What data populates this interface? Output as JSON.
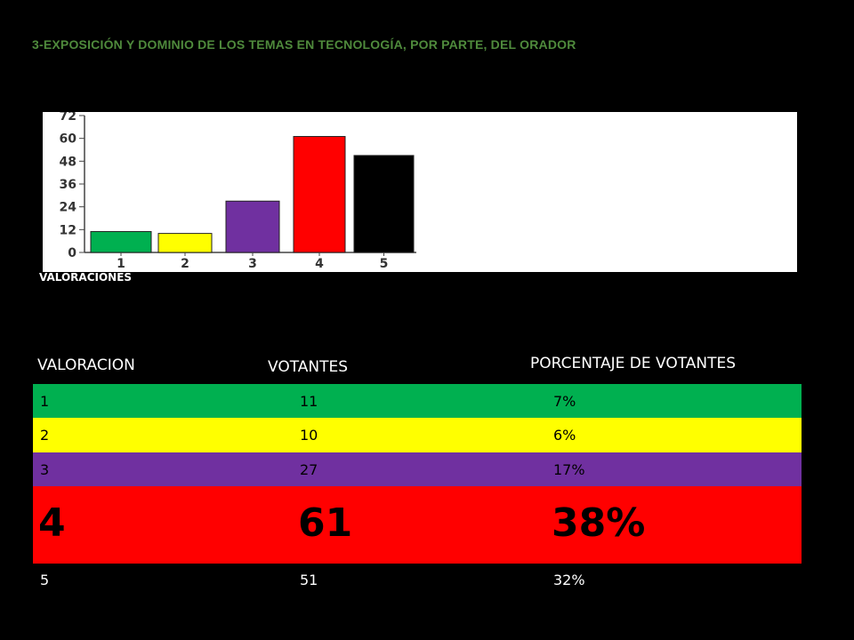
{
  "title": "3-EXPOSICIÓN Y DOMINIO DE LOS TEMAS EN TECNOLOGÍA, POR PARTE, DEL ORADOR",
  "chart_data": {
    "type": "bar",
    "categories": [
      "1",
      "2",
      "3",
      "4",
      "5"
    ],
    "values": [
      11,
      10,
      27,
      61,
      51
    ],
    "colors": [
      "#00b050",
      "#ffff00",
      "#7030a0",
      "#ff0000",
      "#000000"
    ],
    "yticks": [
      "0",
      "12",
      "24",
      "36",
      "48",
      "60",
      "72"
    ],
    "ylim": [
      0,
      72
    ],
    "xlabel": "VALORACIONES",
    "ylabel": "",
    "grid": false
  },
  "table": {
    "headers": {
      "valoracion": "VALORACION",
      "votantes": "VOTANTES",
      "porcentaje": "PORCENTAJE DE  VOTANTES"
    },
    "rows": [
      {
        "valoracion": "1",
        "votantes": "11",
        "porcentaje": "7%",
        "bg": "#00b050"
      },
      {
        "valoracion": "2",
        "votantes": "10",
        "porcentaje": "6%",
        "bg": "#ffff00"
      },
      {
        "valoracion": "3",
        "votantes": "27",
        "porcentaje": "17%",
        "bg": "#7030a0"
      },
      {
        "valoracion": "4",
        "votantes": "61",
        "porcentaje": "38%",
        "bg": "#ff0000"
      },
      {
        "valoracion": "5",
        "votantes": "51",
        "porcentaje": "32%",
        "bg": "#000000",
        "fg": "#ffffff"
      }
    ]
  }
}
